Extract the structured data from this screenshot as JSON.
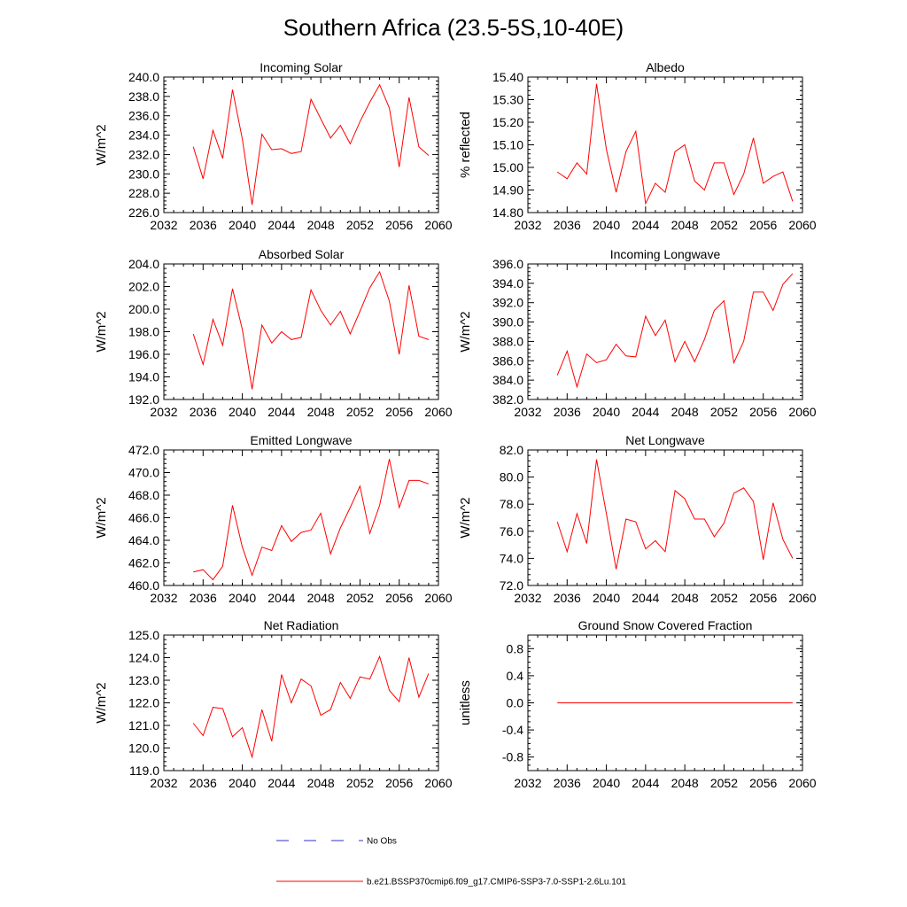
{
  "title": "Southern Africa (23.5-5S,10-40E)",
  "colors": {
    "model": "#ff0000",
    "obs": "#3030cc",
    "axis": "#000000"
  },
  "legend": [
    {
      "label": "No Obs",
      "style": "dashed",
      "color": "#3030cc"
    },
    {
      "label": "b.e21.BSSP370cmip6.f09_g17.CMIP6-SSP3-7.0-SSP1-2.6Lu.101",
      "style": "solid",
      "color": "#ff0000"
    }
  ],
  "chart_data": [
    {
      "type": "line",
      "title": "Incoming Solar",
      "ylabel": "W/m^2",
      "xlim": [
        2032,
        2060
      ],
      "ylim": [
        226,
        240
      ],
      "xticks": [
        2032,
        2036,
        2040,
        2044,
        2048,
        2052,
        2056,
        2060
      ],
      "xtick_labels": [
        "2032",
        "2036",
        "2040",
        "2044",
        "2048",
        "2052",
        "2056",
        "2060"
      ],
      "yticks": [
        226,
        228,
        230,
        232,
        234,
        236,
        238,
        240
      ],
      "ytick_labels": [
        "226.0",
        "228.0",
        "230.0",
        "232.0",
        "234.0",
        "236.0",
        "238.0",
        "240.0"
      ],
      "x": [
        2035,
        2036,
        2037,
        2038,
        2039,
        2040,
        2041,
        2042,
        2043,
        2044,
        2045,
        2046,
        2047,
        2048,
        2049,
        2050,
        2051,
        2052,
        2053,
        2054,
        2055,
        2056,
        2057,
        2058,
        2059
      ],
      "values": [
        232.8,
        229.5,
        234.5,
        231.6,
        238.7,
        233.6,
        226.8,
        234.1,
        232.5,
        232.6,
        232.1,
        232.3,
        237.7,
        235.7,
        233.7,
        235.0,
        233.1,
        235.4,
        237.4,
        239.2,
        236.8,
        230.7,
        237.9,
        232.8,
        231.9
      ]
    },
    {
      "type": "line",
      "title": "Albedo",
      "ylabel": "% reflected",
      "xlim": [
        2032,
        2060
      ],
      "ylim": [
        14.8,
        15.4
      ],
      "xticks": [
        2032,
        2036,
        2040,
        2044,
        2048,
        2052,
        2056,
        2060
      ],
      "xtick_labels": [
        "2032",
        "2036",
        "2040",
        "2044",
        "2048",
        "2052",
        "2056",
        "2060"
      ],
      "yticks": [
        14.8,
        14.9,
        15.0,
        15.1,
        15.2,
        15.3,
        15.4
      ],
      "ytick_labels": [
        "14.80",
        "14.90",
        "15.00",
        "15.10",
        "15.20",
        "15.30",
        "15.40"
      ],
      "x": [
        2035,
        2036,
        2037,
        2038,
        2039,
        2040,
        2041,
        2042,
        2043,
        2044,
        2045,
        2046,
        2047,
        2048,
        2049,
        2050,
        2051,
        2052,
        2053,
        2054,
        2055,
        2056,
        2057,
        2058,
        2059
      ],
      "values": [
        14.98,
        14.95,
        15.02,
        14.97,
        15.37,
        15.08,
        14.89,
        15.07,
        15.16,
        14.84,
        14.93,
        14.89,
        15.07,
        15.1,
        14.94,
        14.9,
        15.02,
        15.02,
        14.88,
        14.97,
        15.13,
        14.93,
        14.96,
        14.98,
        14.85
      ]
    },
    {
      "type": "line",
      "title": "Absorbed Solar",
      "ylabel": "W/m^2",
      "xlim": [
        2032,
        2060
      ],
      "ylim": [
        192,
        204
      ],
      "xticks": [
        2032,
        2036,
        2040,
        2044,
        2048,
        2052,
        2056,
        2060
      ],
      "xtick_labels": [
        "2032",
        "2036",
        "2040",
        "2044",
        "2048",
        "2052",
        "2056",
        "2060"
      ],
      "yticks": [
        192,
        194,
        196,
        198,
        200,
        202,
        204
      ],
      "ytick_labels": [
        "192.0",
        "194.0",
        "196.0",
        "198.0",
        "200.0",
        "202.0",
        "204.0"
      ],
      "x": [
        2035,
        2036,
        2037,
        2038,
        2039,
        2040,
        2041,
        2042,
        2043,
        2044,
        2045,
        2046,
        2047,
        2048,
        2049,
        2050,
        2051,
        2052,
        2053,
        2054,
        2055,
        2056,
        2057,
        2058,
        2059
      ],
      "values": [
        197.8,
        195.1,
        199.1,
        196.8,
        201.8,
        198.2,
        192.9,
        198.6,
        197.0,
        198.0,
        197.3,
        197.5,
        201.7,
        199.9,
        198.6,
        199.8,
        197.8,
        199.8,
        201.9,
        203.3,
        200.7,
        196.0,
        202.1,
        197.6,
        197.3
      ]
    },
    {
      "type": "line",
      "title": "Incoming Longwave",
      "ylabel": "W/m^2",
      "xlim": [
        2032,
        2060
      ],
      "ylim": [
        382,
        396
      ],
      "xticks": [
        2032,
        2036,
        2040,
        2044,
        2048,
        2052,
        2056,
        2060
      ],
      "xtick_labels": [
        "2032",
        "2036",
        "2040",
        "2044",
        "2048",
        "2052",
        "2056",
        "2060"
      ],
      "yticks": [
        382,
        384,
        386,
        388,
        390,
        392,
        394,
        396
      ],
      "ytick_labels": [
        "382.0",
        "384.0",
        "386.0",
        "388.0",
        "390.0",
        "392.0",
        "394.0",
        "396.0"
      ],
      "x": [
        2035,
        2036,
        2037,
        2038,
        2039,
        2040,
        2041,
        2042,
        2043,
        2044,
        2045,
        2046,
        2047,
        2048,
        2049,
        2050,
        2051,
        2052,
        2053,
        2054,
        2055,
        2056,
        2057,
        2058,
        2059
      ],
      "values": [
        384.5,
        387.0,
        383.3,
        386.7,
        385.8,
        386.1,
        387.7,
        386.5,
        386.4,
        390.6,
        388.6,
        390.2,
        385.9,
        388.0,
        385.9,
        388.2,
        391.2,
        392.2,
        385.8,
        388.0,
        393.1,
        393.1,
        391.2,
        393.9,
        395.0
      ]
    },
    {
      "type": "line",
      "title": "Emitted Longwave",
      "ylabel": "W/m^2",
      "xlim": [
        2032,
        2060
      ],
      "ylim": [
        460,
        472
      ],
      "xticks": [
        2032,
        2036,
        2040,
        2044,
        2048,
        2052,
        2056,
        2060
      ],
      "xtick_labels": [
        "2032",
        "2036",
        "2040",
        "2044",
        "2048",
        "2052",
        "2056",
        "2060"
      ],
      "yticks": [
        460,
        462,
        464,
        466,
        468,
        470,
        472
      ],
      "ytick_labels": [
        "460.0",
        "462.0",
        "464.0",
        "466.0",
        "468.0",
        "470.0",
        "472.0"
      ],
      "x": [
        2035,
        2036,
        2037,
        2038,
        2039,
        2040,
        2041,
        2042,
        2043,
        2044,
        2045,
        2046,
        2047,
        2048,
        2049,
        2050,
        2051,
        2052,
        2053,
        2054,
        2055,
        2056,
        2057,
        2058,
        2059
      ],
      "values": [
        461.2,
        461.4,
        460.5,
        461.7,
        467.1,
        463.4,
        460.9,
        463.4,
        463.1,
        465.3,
        463.9,
        464.7,
        464.9,
        466.4,
        462.8,
        465.1,
        466.9,
        468.8,
        464.6,
        467.1,
        471.2,
        466.9,
        469.3,
        469.3,
        469.0
      ]
    },
    {
      "type": "line",
      "title": "Net Longwave",
      "ylabel": "W/m^2",
      "xlim": [
        2032,
        2060
      ],
      "ylim": [
        72,
        82
      ],
      "xticks": [
        2032,
        2036,
        2040,
        2044,
        2048,
        2052,
        2056,
        2060
      ],
      "xtick_labels": [
        "2032",
        "2036",
        "2040",
        "2044",
        "2048",
        "2052",
        "2056",
        "2060"
      ],
      "yticks": [
        72,
        74,
        76,
        78,
        80,
        82
      ],
      "ytick_labels": [
        "72.0",
        "74.0",
        "76.0",
        "78.0",
        "80.0",
        "82.0"
      ],
      "x": [
        2035,
        2036,
        2037,
        2038,
        2039,
        2040,
        2041,
        2042,
        2043,
        2044,
        2045,
        2046,
        2047,
        2048,
        2049,
        2050,
        2051,
        2052,
        2053,
        2054,
        2055,
        2056,
        2057,
        2058,
        2059
      ],
      "values": [
        76.7,
        74.5,
        77.3,
        75.1,
        81.3,
        77.3,
        73.2,
        76.9,
        76.7,
        74.7,
        75.3,
        74.5,
        79.0,
        78.4,
        76.9,
        76.9,
        75.6,
        76.6,
        78.8,
        79.2,
        78.2,
        73.9,
        78.1,
        75.4,
        74.0
      ]
    },
    {
      "type": "line",
      "title": "Net Radiation",
      "ylabel": "W/m^2",
      "xlim": [
        2032,
        2060
      ],
      "ylim": [
        119,
        125
      ],
      "xticks": [
        2032,
        2036,
        2040,
        2044,
        2048,
        2052,
        2056,
        2060
      ],
      "xtick_labels": [
        "2032",
        "2036",
        "2040",
        "2044",
        "2048",
        "2052",
        "2056",
        "2060"
      ],
      "yticks": [
        119,
        120,
        121,
        122,
        123,
        124,
        125
      ],
      "ytick_labels": [
        "119.0",
        "120.0",
        "121.0",
        "122.0",
        "123.0",
        "124.0",
        "125.0"
      ],
      "x": [
        2035,
        2036,
        2037,
        2038,
        2039,
        2040,
        2041,
        2042,
        2043,
        2044,
        2045,
        2046,
        2047,
        2048,
        2049,
        2050,
        2051,
        2052,
        2053,
        2054,
        2055,
        2056,
        2057,
        2058,
        2059
      ],
      "values": [
        121.1,
        120.55,
        121.8,
        121.75,
        120.5,
        120.9,
        119.6,
        121.7,
        120.3,
        123.25,
        122.0,
        123.05,
        122.75,
        121.45,
        121.7,
        122.9,
        122.2,
        123.15,
        123.05,
        124.05,
        122.55,
        122.05,
        124.0,
        122.25,
        123.3
      ]
    },
    {
      "type": "line",
      "title": "Ground Snow Covered Fraction",
      "ylabel": "unitless",
      "xlim": [
        2032,
        2060
      ],
      "ylim": [
        -1,
        1
      ],
      "xticks": [
        2032,
        2036,
        2040,
        2044,
        2048,
        2052,
        2056,
        2060
      ],
      "xtick_labels": [
        "2032",
        "2036",
        "2040",
        "2044",
        "2048",
        "2052",
        "2056",
        "2060"
      ],
      "yticks": [
        -0.8,
        -0.4,
        0.0,
        0.4,
        0.8
      ],
      "ytick_labels": [
        "-0.8",
        "-0.4",
        "0.0",
        "0.4",
        "0.8"
      ],
      "x": [
        2035,
        2036,
        2037,
        2038,
        2039,
        2040,
        2041,
        2042,
        2043,
        2044,
        2045,
        2046,
        2047,
        2048,
        2049,
        2050,
        2051,
        2052,
        2053,
        2054,
        2055,
        2056,
        2057,
        2058,
        2059
      ],
      "values": [
        0,
        0,
        0,
        0,
        0,
        0,
        0,
        0,
        0,
        0,
        0,
        0,
        0,
        0,
        0,
        0,
        0,
        0,
        0,
        0,
        0,
        0,
        0,
        0,
        0
      ]
    }
  ]
}
